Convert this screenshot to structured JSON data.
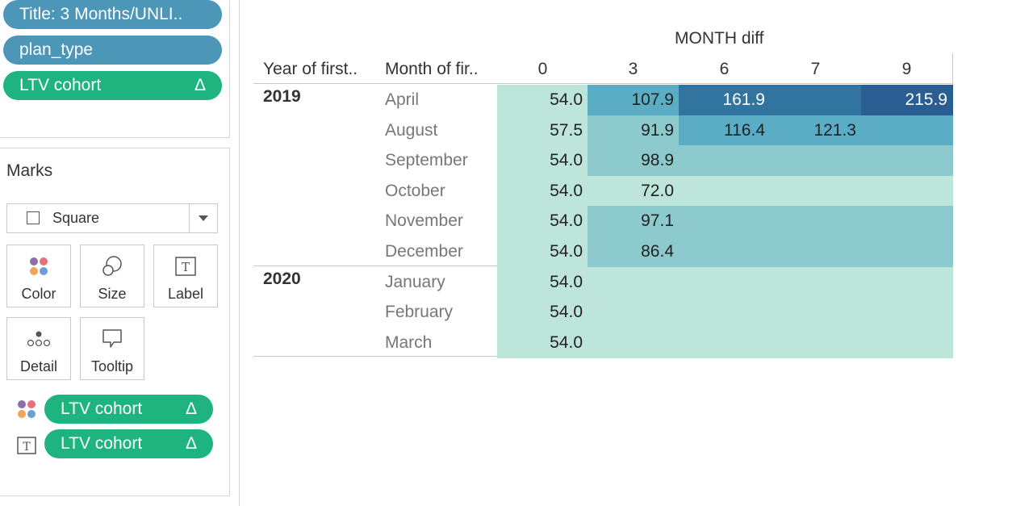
{
  "filters": {
    "pills": [
      {
        "label": "Title: 3 Months/UNLI..",
        "color": "#4c96b8"
      },
      {
        "label": "plan_type",
        "color": "#4c96b8"
      },
      {
        "label": "LTV cohort",
        "delta": "Δ",
        "color": "#1eb37f"
      }
    ]
  },
  "marks": {
    "title": "Marks",
    "mark_type": "Square",
    "buttons": [
      {
        "label": "Color",
        "icon": "color-dots-icon"
      },
      {
        "label": "Size",
        "icon": "size-circles-icon"
      },
      {
        "label": "Label",
        "icon": "label-t-icon"
      },
      {
        "label": "Detail",
        "icon": "detail-dots-icon"
      },
      {
        "label": "Tooltip",
        "icon": "tooltip-bubble-icon"
      }
    ],
    "encodings": [
      {
        "icon": "color-dots-icon",
        "label": "LTV cohort",
        "delta": "Δ"
      },
      {
        "icon": "label-t-icon",
        "label": "LTV cohort",
        "delta": "Δ"
      }
    ]
  },
  "table": {
    "column_field": "MONTH diff",
    "row_headers": [
      "Year of first..",
      "Month of fir.."
    ],
    "columns": [
      "0",
      "3",
      "6",
      "7",
      "9"
    ],
    "groups": [
      {
        "year": "2019",
        "rows": [
          {
            "month": "April",
            "cells": [
              {
                "value": "54.0",
                "fill": "#bde5d9"
              },
              {
                "value": "107.9",
                "fill": "#5badc6"
              },
              {
                "value": "161.9",
                "fill": "#3274a0"
              },
              {
                "value": "",
                "fill": "#3274a0"
              },
              {
                "value": "215.9",
                "fill": "#2a5e93"
              }
            ]
          },
          {
            "month": "August",
            "cells": [
              {
                "value": "57.5",
                "fill": "#bde5d9"
              },
              {
                "value": "91.9",
                "fill": "#8ccacd"
              },
              {
                "value": "116.4",
                "fill": "#5badc6"
              },
              {
                "value": "121.3",
                "fill": "#5badc6"
              },
              {
                "value": "",
                "fill": "#5badc6"
              }
            ]
          },
          {
            "month": "September",
            "cells": [
              {
                "value": "54.0",
                "fill": "#bde5d9"
              },
              {
                "value": "98.9",
                "fill": "#8ccacd"
              },
              {
                "value": "",
                "fill": "#8ccacd"
              },
              {
                "value": "",
                "fill": "#8ccacd"
              },
              {
                "value": "",
                "fill": "#8ccacd"
              }
            ]
          },
          {
            "month": "October",
            "cells": [
              {
                "value": "54.0",
                "fill": "#bde5d9"
              },
              {
                "value": "72.0",
                "fill": "#bde5d9"
              },
              {
                "value": "",
                "fill": "#bde5d9"
              },
              {
                "value": "",
                "fill": "#bde5d9"
              },
              {
                "value": "",
                "fill": "#bde5d9"
              }
            ]
          },
          {
            "month": "November",
            "cells": [
              {
                "value": "54.0",
                "fill": "#bde5d9"
              },
              {
                "value": "97.1",
                "fill": "#8ccacd"
              },
              {
                "value": "",
                "fill": "#8ccacd"
              },
              {
                "value": "",
                "fill": "#8ccacd"
              },
              {
                "value": "",
                "fill": "#8ccacd"
              }
            ]
          },
          {
            "month": "December",
            "cells": [
              {
                "value": "54.0",
                "fill": "#bde5d9"
              },
              {
                "value": "86.4",
                "fill": "#8ccacd"
              },
              {
                "value": "",
                "fill": "#8ccacd"
              },
              {
                "value": "",
                "fill": "#8ccacd"
              },
              {
                "value": "",
                "fill": "#8ccacd"
              }
            ]
          }
        ]
      },
      {
        "year": "2020",
        "rows": [
          {
            "month": "January",
            "cells": [
              {
                "value": "54.0",
                "fill": "#bde5d9"
              },
              {
                "value": "",
                "fill": "#bde5d9"
              },
              {
                "value": "",
                "fill": "#bde5d9"
              },
              {
                "value": "",
                "fill": "#bde5d9"
              },
              {
                "value": "",
                "fill": "#bde5d9"
              }
            ]
          },
          {
            "month": "February",
            "cells": [
              {
                "value": "54.0",
                "fill": "#bde5d9"
              },
              {
                "value": "",
                "fill": "#bde5d9"
              },
              {
                "value": "",
                "fill": "#bde5d9"
              },
              {
                "value": "",
                "fill": "#bde5d9"
              },
              {
                "value": "",
                "fill": "#bde5d9"
              }
            ]
          },
          {
            "month": "March",
            "cells": [
              {
                "value": "54.0",
                "fill": "#bde5d9"
              },
              {
                "value": "",
                "fill": "#bde5d9"
              },
              {
                "value": "",
                "fill": "#bde5d9"
              },
              {
                "value": "",
                "fill": "#bde5d9"
              },
              {
                "value": "",
                "fill": "#bde5d9"
              }
            ]
          }
        ]
      }
    ]
  }
}
